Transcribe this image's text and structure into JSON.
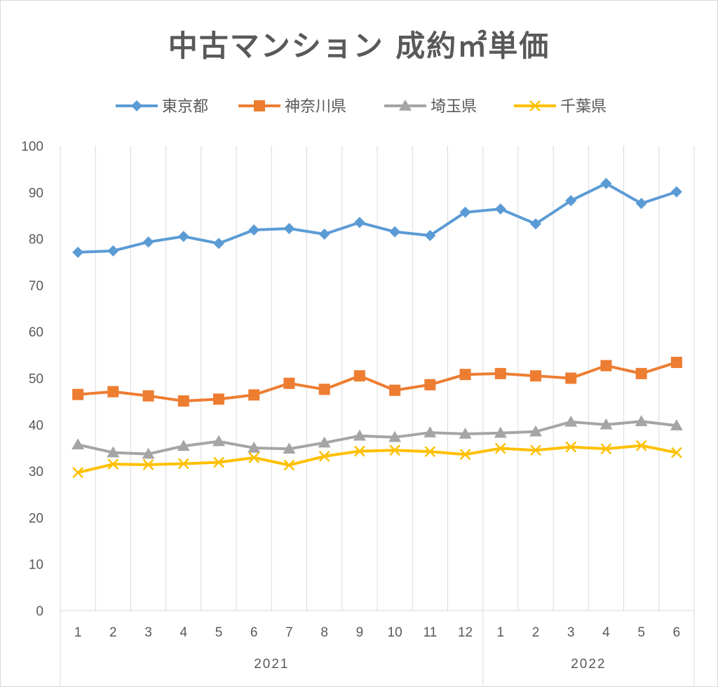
{
  "chart_data": {
    "type": "line",
    "title": "中古マンション 成約㎡単価",
    "categories": [
      "1",
      "2",
      "3",
      "4",
      "5",
      "6",
      "7",
      "8",
      "9",
      "10",
      "11",
      "12",
      "1",
      "2",
      "3",
      "4",
      "5",
      "6"
    ],
    "category_groups": [
      {
        "label": "2021",
        "count": 12
      },
      {
        "label": "2022",
        "count": 6
      }
    ],
    "ylim": [
      0,
      100
    ],
    "yticks": [
      "0",
      "10",
      "20",
      "30",
      "40",
      "50",
      "60",
      "70",
      "80",
      "90",
      "100"
    ],
    "grid": "vertical",
    "legend_position": "top",
    "series": [
      {
        "name": "東京都",
        "color": "#5B9BD5",
        "marker": "diamond",
        "values": [
          77.1,
          77.4,
          79.3,
          80.5,
          79.0,
          81.9,
          82.2,
          81.0,
          83.5,
          81.5,
          80.7,
          85.7,
          86.4,
          83.2,
          88.2,
          91.9,
          87.6,
          90.1
        ]
      },
      {
        "name": "神奈川県",
        "color": "#ED7D31",
        "marker": "square",
        "values": [
          46.5,
          47.1,
          46.2,
          45.1,
          45.5,
          46.4,
          48.9,
          47.6,
          50.5,
          47.4,
          48.6,
          50.8,
          51.0,
          50.5,
          50.0,
          52.7,
          51.0,
          53.4
        ]
      },
      {
        "name": "埼玉県",
        "color": "#A5A5A5",
        "marker": "triangle",
        "values": [
          35.7,
          34.0,
          33.7,
          35.4,
          36.4,
          35.0,
          34.8,
          36.1,
          37.6,
          37.3,
          38.3,
          38.0,
          38.2,
          38.5,
          40.6,
          40.0,
          40.7,
          39.8
        ]
      },
      {
        "name": "千葉県",
        "color": "#FFC000",
        "marker": "x",
        "values": [
          29.7,
          31.5,
          31.4,
          31.6,
          31.9,
          32.9,
          31.3,
          33.2,
          34.3,
          34.5,
          34.2,
          33.6,
          34.9,
          34.5,
          35.2,
          34.8,
          35.5,
          34.0
        ]
      }
    ]
  }
}
